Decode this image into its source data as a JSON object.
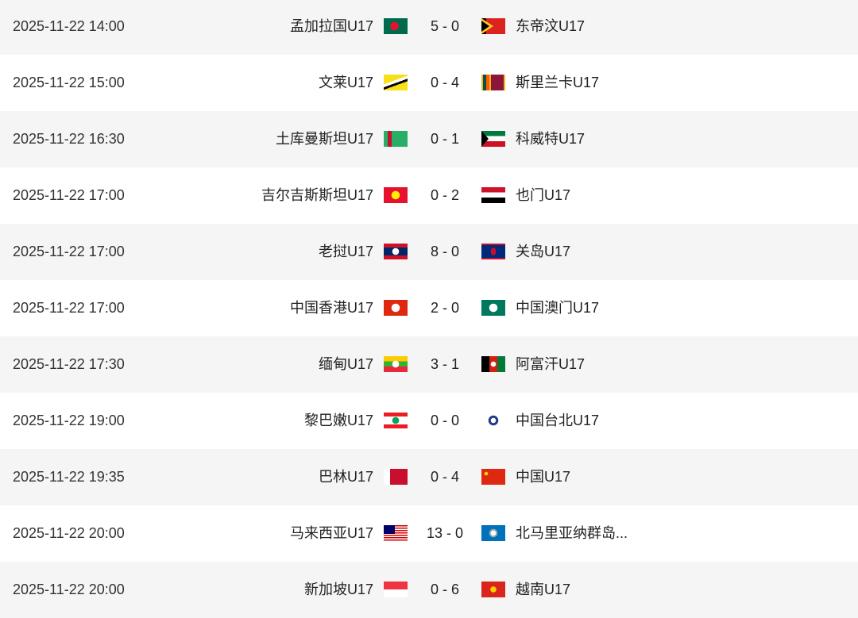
{
  "matches": [
    {
      "date": "2025-11-22 14:00",
      "home": "孟加拉国U17",
      "home_flag": "BD",
      "score": "5 - 0",
      "away": "东帝汶U17",
      "away_flag": "TL"
    },
    {
      "date": "2025-11-22 15:00",
      "home": "文莱U17",
      "home_flag": "BN",
      "score": "0 - 4",
      "away": "斯里兰卡U17",
      "away_flag": "LK"
    },
    {
      "date": "2025-11-22 16:30",
      "home": "土库曼斯坦U17",
      "home_flag": "TM",
      "score": "0 - 1",
      "away": "科威特U17",
      "away_flag": "KW"
    },
    {
      "date": "2025-11-22 17:00",
      "home": "吉尔吉斯斯坦U17",
      "home_flag": "KG",
      "score": "0 - 2",
      "away": "也门U17",
      "away_flag": "YE"
    },
    {
      "date": "2025-11-22 17:00",
      "home": "老挝U17",
      "home_flag": "LA",
      "score": "8 - 0",
      "away": "关岛U17",
      "away_flag": "GU"
    },
    {
      "date": "2025-11-22 17:00",
      "home": "中国香港U17",
      "home_flag": "HK",
      "score": "2 - 0",
      "away": "中国澳门U17",
      "away_flag": "MO"
    },
    {
      "date": "2025-11-22 17:30",
      "home": "缅甸U17",
      "home_flag": "MM",
      "score": "3 - 1",
      "away": "阿富汗U17",
      "away_flag": "AF"
    },
    {
      "date": "2025-11-22 19:00",
      "home": "黎巴嫩U17",
      "home_flag": "LB",
      "score": "0 - 0",
      "away": "中国台北U17",
      "away_flag": "TW"
    },
    {
      "date": "2025-11-22 19:35",
      "home": "巴林U17",
      "home_flag": "BH",
      "score": "0 - 4",
      "away": "中国U17",
      "away_flag": "CN"
    },
    {
      "date": "2025-11-22 20:00",
      "home": "马来西亚U17",
      "home_flag": "MY",
      "score": "13 - 0",
      "away": "北马里亚纳群岛...",
      "away_flag": "MP"
    },
    {
      "date": "2025-11-22 20:00",
      "home": "新加坡U17",
      "home_flag": "SG",
      "score": "0 - 6",
      "away": "越南U17",
      "away_flag": "VN"
    }
  ]
}
